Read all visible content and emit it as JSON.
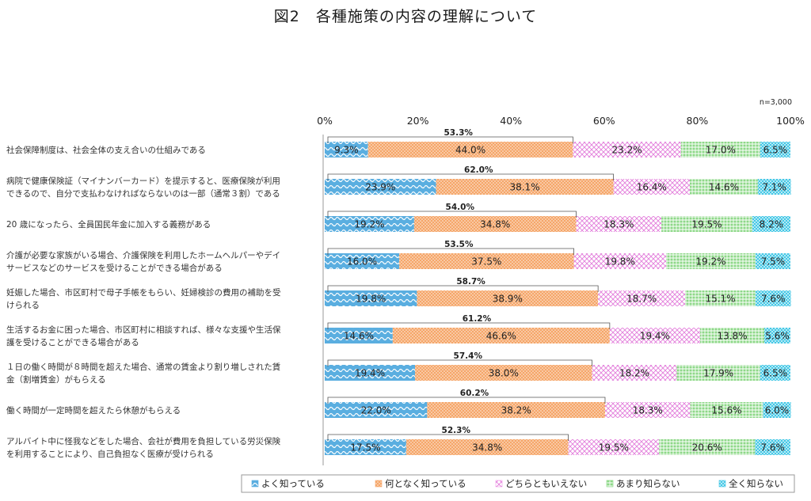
{
  "chart_data": {
    "type": "bar",
    "stacked": true,
    "orientation": "horizontal",
    "title": "図2　各種施策の内容の理解について",
    "note": "n=3,000",
    "xlim": [
      0,
      100
    ],
    "ticks": [
      "0%",
      "20%",
      "40%",
      "60%",
      "80%",
      "100%"
    ],
    "categories": [
      [
        "社会保障制度は、社会全体の支え合いの仕組みである"
      ],
      [
        "病院で健康保険証（マイナンバーカード）を提示すると、医療保険が利用",
        "できるので、自分で支払わなければならないのは一部（通常３割）である"
      ],
      [
        "20 歳になったら、全員国民年金に加入する義務がある"
      ],
      [
        "介護が必要な家族がいる場合、介護保険を利用したホームヘルパーやデイ",
        "サービスなどのサービスを受けることができる場合がある"
      ],
      [
        "妊娠した場合、市区町村で母子手帳をもらい、妊婦検診の費用の補助を受",
        "けられる"
      ],
      [
        "生活するお金に困った場合、市区町村に相談すれば、様々な支援や生活保",
        "護を受けることができる場合がある"
      ],
      [
        "１日の働く時間が８時間を超えた場合、通常の賃金より割り増しされた賃",
        "金（割増賃金）がもらえる"
      ],
      [
        "働く時間が一定時間を超えたら休憩がもらえる"
      ],
      [
        "アルバイト中に怪我などをした場合、会社が費用を負担している労災保険",
        "を利用することにより、自己負担なく医療が受けられる"
      ]
    ],
    "series": [
      {
        "name": "よく知っている",
        "color": "#5aaee0",
        "values": [
          9.3,
          23.9,
          19.2,
          16.0,
          19.8,
          14.6,
          19.4,
          22.0,
          17.5
        ]
      },
      {
        "name": "何となく知っている",
        "color": "#f5a669",
        "values": [
          44.0,
          38.1,
          34.8,
          37.5,
          38.9,
          46.6,
          38.0,
          38.2,
          34.8
        ]
      },
      {
        "name": "どちらともいえない",
        "color": "#ee9ae8",
        "values": [
          23.2,
          16.4,
          18.3,
          19.8,
          18.7,
          19.4,
          18.2,
          18.3,
          19.5
        ]
      },
      {
        "name": "あまり知らない",
        "color": "#7fd47a",
        "values": [
          17.0,
          14.6,
          19.5,
          19.2,
          15.1,
          13.8,
          17.9,
          15.6,
          20.6
        ]
      },
      {
        "name": "全く知らない",
        "color": "#45c8e6",
        "values": [
          6.5,
          7.1,
          8.2,
          7.5,
          7.6,
          5.6,
          6.5,
          6.0,
          7.6
        ]
      }
    ],
    "subtotals": [
      "53.3%",
      "62.0%",
      "54.0%",
      "53.5%",
      "58.7%",
      "61.2%",
      "57.4%",
      "60.2%",
      "52.3%"
    ],
    "legend_position": "bottom"
  }
}
